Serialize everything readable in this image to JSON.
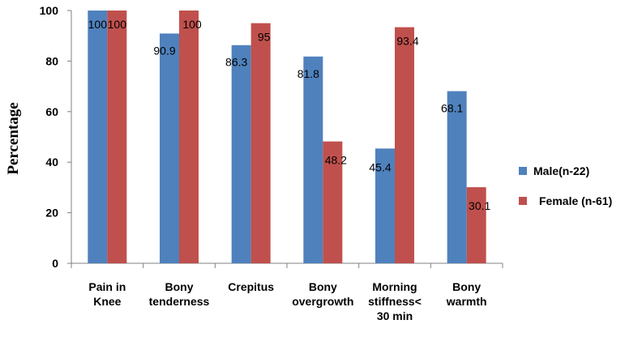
{
  "chart_data": {
    "type": "bar",
    "title": "",
    "xlabel": "",
    "ylabel": "Percentage",
    "ylim": [
      0,
      100
    ],
    "yticks": [
      0,
      20,
      40,
      60,
      80,
      100
    ],
    "grid": false,
    "legend_position": "right",
    "categories": [
      [
        "Pain in",
        "Knee"
      ],
      [
        "Bony",
        "tenderness"
      ],
      [
        "Crepitus"
      ],
      [
        "Bony",
        "overgrowth"
      ],
      [
        "Morning",
        "stiffness<",
        "30 min"
      ],
      [
        "Bony",
        "warmth"
      ]
    ],
    "series": [
      {
        "name": "Male(n-22)",
        "color": "#4F81BD",
        "values": [
          100,
          90.9,
          86.3,
          81.8,
          45.4,
          68.1
        ]
      },
      {
        "name": "Female (n-61)",
        "color": "#C0504D",
        "values": [
          100,
          100,
          95,
          48.2,
          93.4,
          30.1
        ]
      }
    ]
  }
}
